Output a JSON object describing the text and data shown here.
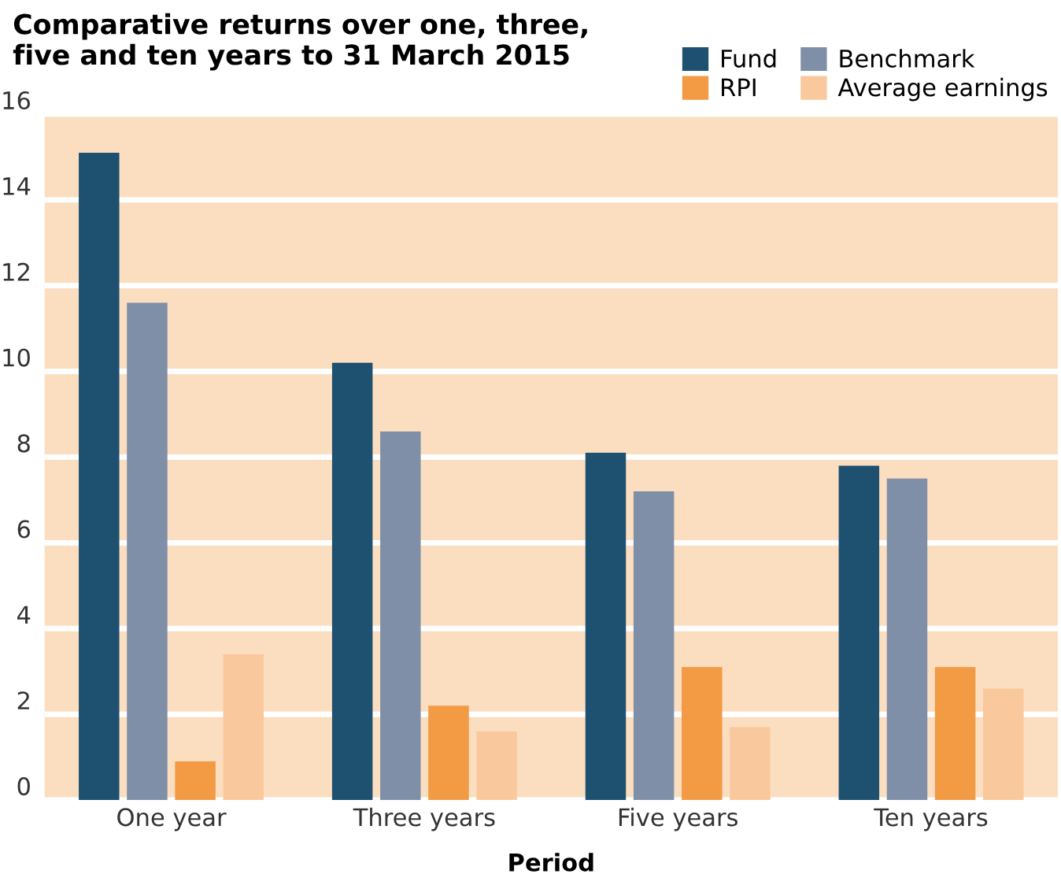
{
  "chart_data": {
    "type": "bar",
    "title": "Comparative returns over one, three,\nfive and ten years to 31 March 2015",
    "xlabel": "Period",
    "categories": [
      "One year",
      "Three years",
      "Five years",
      "Ten years"
    ],
    "series": [
      {
        "name": "Fund",
        "color": "#1e5070",
        "values": [
          15.1,
          10.2,
          8.1,
          7.8
        ]
      },
      {
        "name": "Benchmark",
        "color": "#7f8fa8",
        "values": [
          11.6,
          8.6,
          7.2,
          7.5
        ]
      },
      {
        "name": "RPI",
        "color": "#f29a44",
        "values": [
          0.9,
          2.2,
          3.1,
          3.1
        ]
      },
      {
        "name": "Average earnings",
        "color": "#f9c89c",
        "values": [
          3.4,
          1.6,
          1.7,
          2.6
        ]
      }
    ],
    "ylim": [
      0,
      16
    ],
    "yticks": [
      0,
      2,
      4,
      6,
      8,
      10,
      12,
      14,
      16
    ],
    "grid": "y",
    "legend": "top right"
  }
}
